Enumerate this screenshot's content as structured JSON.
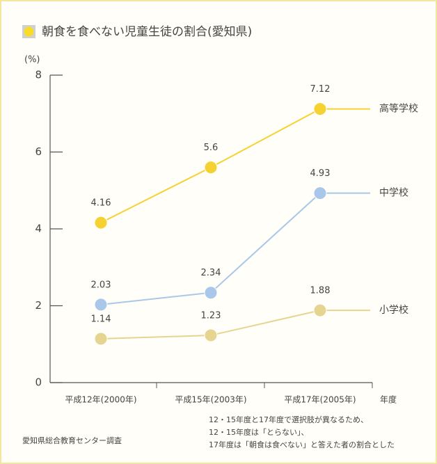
{
  "chart_data": {
    "type": "line",
    "title": "朝食を食べない児童生徒の割合(愛知県)",
    "y_label": "(%)",
    "x_label": "年度",
    "categories": [
      "平成12年(2000年)",
      "平成15年(2003年)",
      "平成17年(2005年)"
    ],
    "series": [
      {
        "name": "高等学校",
        "color": "#f5d232",
        "label_color": "#e3b400",
        "values": [
          4.16,
          5.6,
          7.12
        ]
      },
      {
        "name": "中学校",
        "color": "#a9c7e8",
        "label_color": "#2a73b8",
        "values": [
          2.03,
          2.34,
          4.93
        ]
      },
      {
        "name": "小学校",
        "color": "#e6d491",
        "label_color": "#d6aa0a",
        "values": [
          1.14,
          1.23,
          1.88
        ]
      }
    ],
    "ylim": [
      0,
      8
    ],
    "yticks": [
      0,
      2,
      4,
      6,
      8
    ],
    "source": "愛知県総合教育センター調査",
    "notes": [
      "12・15年度と17年度で選択肢が異なるため、",
      "12・15年度は「とらない」、",
      "17年度は「朝食は食べない」と答えた者の割合とした"
    ]
  }
}
